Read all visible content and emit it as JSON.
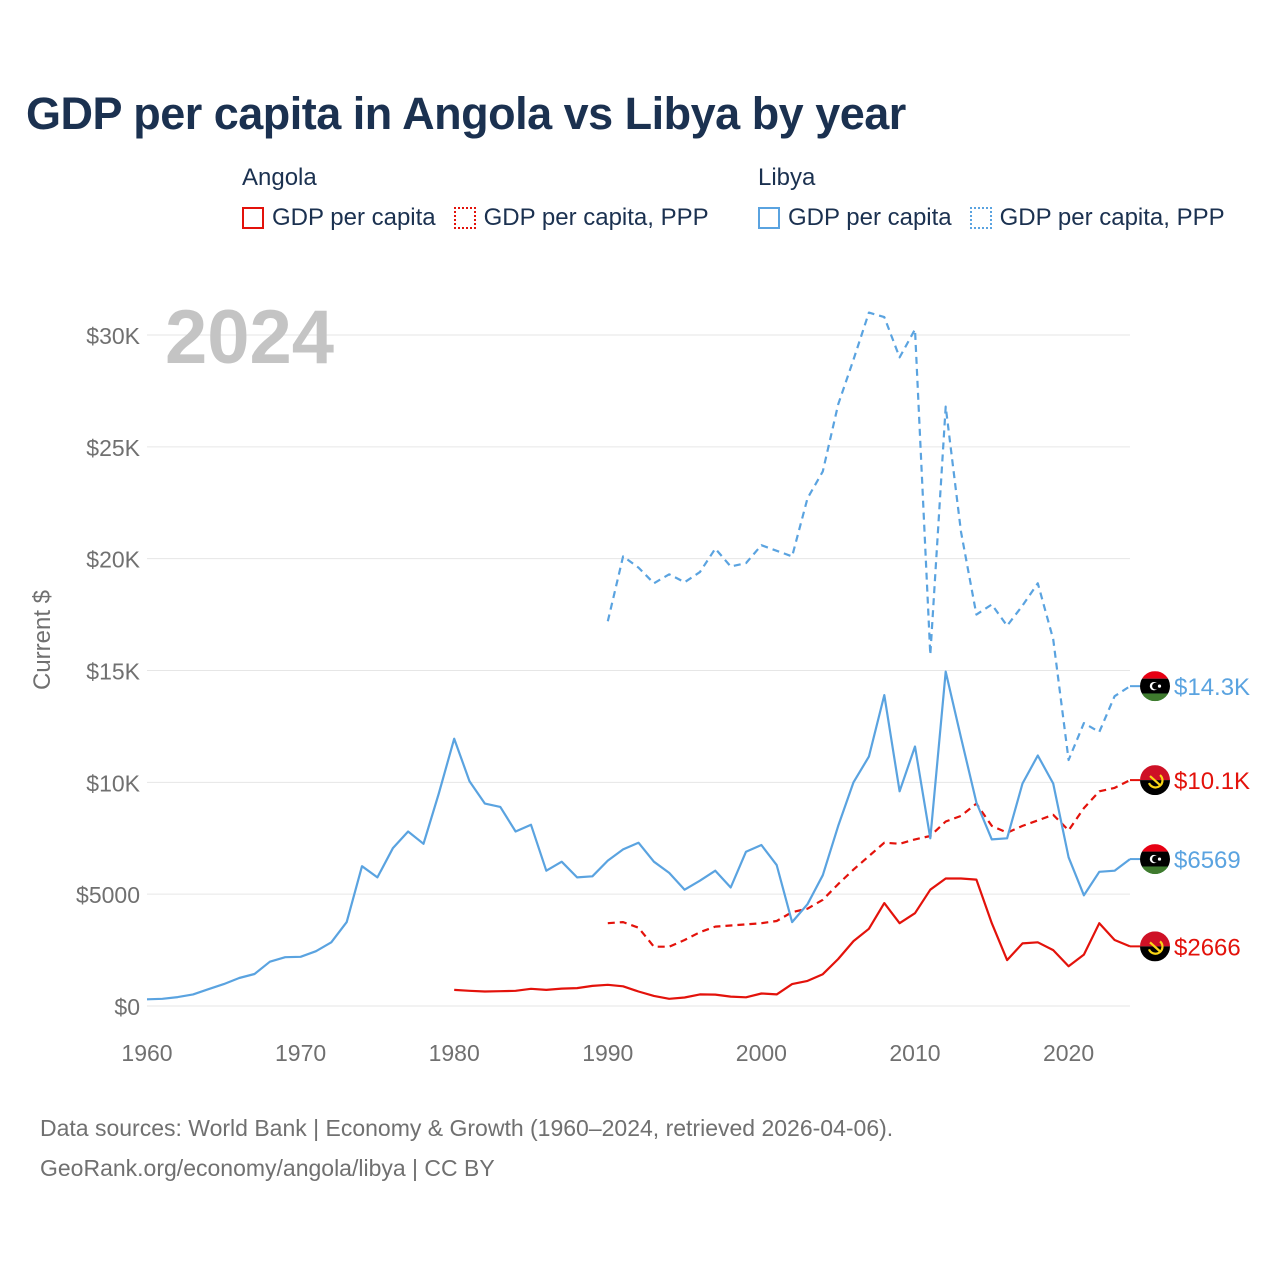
{
  "title": "GDP per capita in Angola vs Libya by year",
  "legend": {
    "angola": {
      "country": "Angola",
      "items": [
        {
          "label": "GDP per capita"
        },
        {
          "label": "GDP per capita, PPP"
        }
      ]
    },
    "libya": {
      "country": "Libya",
      "items": [
        {
          "label": "GDP per capita"
        },
        {
          "label": "GDP per capita, PPP"
        }
      ]
    }
  },
  "colors": {
    "angola": "#e3120b",
    "libya": "#5aa3e0",
    "grid": "#e6e6e6",
    "axis_text": "#707070",
    "title": "#1b3150",
    "year": "#c4c4c4"
  },
  "year_label": "2024",
  "chart_data": {
    "type": "line",
    "title": "GDP per capita in Angola vs Libya by year",
    "xlabel": "",
    "ylabel": "Current $",
    "xlim": [
      1960,
      2024
    ],
    "ylim": [
      0,
      32000
    ],
    "x_ticks": [
      {
        "value": 1960,
        "label": "1960"
      },
      {
        "value": 1970,
        "label": "1970"
      },
      {
        "value": 1980,
        "label": "1980"
      },
      {
        "value": 1990,
        "label": "1990"
      },
      {
        "value": 2000,
        "label": "2000"
      },
      {
        "value": 2010,
        "label": "2010"
      },
      {
        "value": 2020,
        "label": "2020"
      }
    ],
    "y_ticks": [
      {
        "value": 0,
        "label": "$0"
      },
      {
        "value": 5000,
        "label": "$5000"
      },
      {
        "value": 10000,
        "label": "$10K"
      },
      {
        "value": 15000,
        "label": "$15K"
      },
      {
        "value": 20000,
        "label": "$20K"
      },
      {
        "value": 25000,
        "label": "$25K"
      },
      {
        "value": 30000,
        "label": "$30K"
      }
    ],
    "series": [
      {
        "name": "Libya GDP per capita, PPP",
        "country": "libya",
        "dashed": true,
        "end_label": "$14.3K",
        "end_flag": "libya",
        "x": [
          1990,
          1991,
          1992,
          1993,
          1994,
          1995,
          1996,
          1997,
          1998,
          1999,
          2000,
          2001,
          2002,
          2003,
          2004,
          2005,
          2006,
          2007,
          2008,
          2009,
          2010,
          2011,
          2012,
          2013,
          2014,
          2015,
          2016,
          2017,
          2018,
          2019,
          2020,
          2021,
          2022,
          2023,
          2024
        ],
        "values": [
          17200,
          20100,
          19600,
          18900,
          19300,
          18950,
          19400,
          20450,
          19650,
          19800,
          20600,
          20350,
          20100,
          22700,
          23900,
          26900,
          28900,
          31000,
          30800,
          29000,
          30250,
          15700,
          26800,
          21200,
          17500,
          17950,
          17000,
          17900,
          18900,
          16400,
          11000,
          12650,
          12250,
          13850,
          14300
        ]
      },
      {
        "name": "Angola GDP per capita, PPP",
        "country": "angola",
        "dashed": true,
        "end_label": "$10.1K",
        "end_flag": "angola",
        "x": [
          1990,
          1991,
          1992,
          1993,
          1994,
          1995,
          1996,
          1997,
          1998,
          1999,
          2000,
          2001,
          2002,
          2003,
          2004,
          2005,
          2006,
          2007,
          2008,
          2009,
          2010,
          2011,
          2012,
          2013,
          2014,
          2015,
          2016,
          2017,
          2018,
          2019,
          2020,
          2021,
          2022,
          2023,
          2024
        ],
        "values": [
          3700,
          3750,
          3500,
          2650,
          2650,
          2950,
          3300,
          3550,
          3600,
          3650,
          3700,
          3800,
          4200,
          4350,
          4750,
          5450,
          6100,
          6700,
          7300,
          7250,
          7450,
          7600,
          8250,
          8500,
          9050,
          8050,
          7750,
          8050,
          8300,
          8550,
          7850,
          8850,
          9600,
          9750,
          10100
        ]
      },
      {
        "name": "Libya GDP per capita",
        "country": "libya",
        "dashed": false,
        "end_label": "$6569",
        "end_flag": "libya",
        "x": [
          1960,
          1961,
          1962,
          1963,
          1964,
          1965,
          1966,
          1967,
          1968,
          1969,
          1970,
          1971,
          1972,
          1973,
          1974,
          1975,
          1976,
          1977,
          1978,
          1979,
          1980,
          1981,
          1982,
          1983,
          1984,
          1985,
          1986,
          1987,
          1988,
          1989,
          1990,
          1991,
          1992,
          1993,
          1994,
          1995,
          1996,
          1997,
          1998,
          1999,
          2000,
          2001,
          2002,
          2003,
          2004,
          2005,
          2006,
          2007,
          2008,
          2009,
          2010,
          2011,
          2012,
          2013,
          2014,
          2015,
          2016,
          2017,
          2018,
          2019,
          2020,
          2021,
          2022,
          2023,
          2024
        ],
        "values": [
          300,
          320,
          400,
          520,
          750,
          980,
          1250,
          1430,
          1980,
          2180,
          2200,
          2450,
          2850,
          3750,
          6250,
          5750,
          7050,
          7800,
          7250,
          9500,
          11950,
          10050,
          9050,
          8900,
          7800,
          8100,
          6050,
          6450,
          5750,
          5800,
          6500,
          7000,
          7300,
          6450,
          5950,
          5200,
          5600,
          6050,
          5300,
          6900,
          7200,
          6300,
          3750,
          4550,
          5850,
          8050,
          10000,
          11150,
          13900,
          9600,
          11600,
          7500,
          14950,
          12000,
          9100,
          7450,
          7500,
          9950,
          11200,
          9950,
          6650,
          4950,
          6000,
          6050,
          6569
        ]
      },
      {
        "name": "Angola GDP per capita",
        "country": "angola",
        "dashed": false,
        "end_label": "$2666",
        "end_flag": "angola",
        "x": [
          1980,
          1981,
          1982,
          1983,
          1984,
          1985,
          1986,
          1987,
          1988,
          1989,
          1990,
          1991,
          1992,
          1993,
          1994,
          1995,
          1996,
          1997,
          1998,
          1999,
          2000,
          2001,
          2002,
          2003,
          2004,
          2005,
          2006,
          2007,
          2008,
          2009,
          2010,
          2011,
          2012,
          2013,
          2014,
          2015,
          2016,
          2017,
          2018,
          2019,
          2020,
          2021,
          2022,
          2023,
          2024
        ],
        "values": [
          720,
          680,
          650,
          660,
          680,
          770,
          720,
          780,
          800,
          900,
          950,
          880,
          650,
          450,
          320,
          380,
          520,
          510,
          420,
          390,
          560,
          520,
          980,
          1120,
          1420,
          2100,
          2900,
          3450,
          4600,
          3700,
          4150,
          5200,
          5700,
          5700,
          5650,
          3700,
          2050,
          2800,
          2850,
          2500,
          1780,
          2300,
          3700,
          2950,
          2666
        ]
      }
    ]
  },
  "source": {
    "line1": "Data sources: World Bank | Economy & Growth (1960–2024, retrieved 2026-04-06).",
    "line2": "GeoRank.org/economy/angola/libya | CC BY"
  }
}
